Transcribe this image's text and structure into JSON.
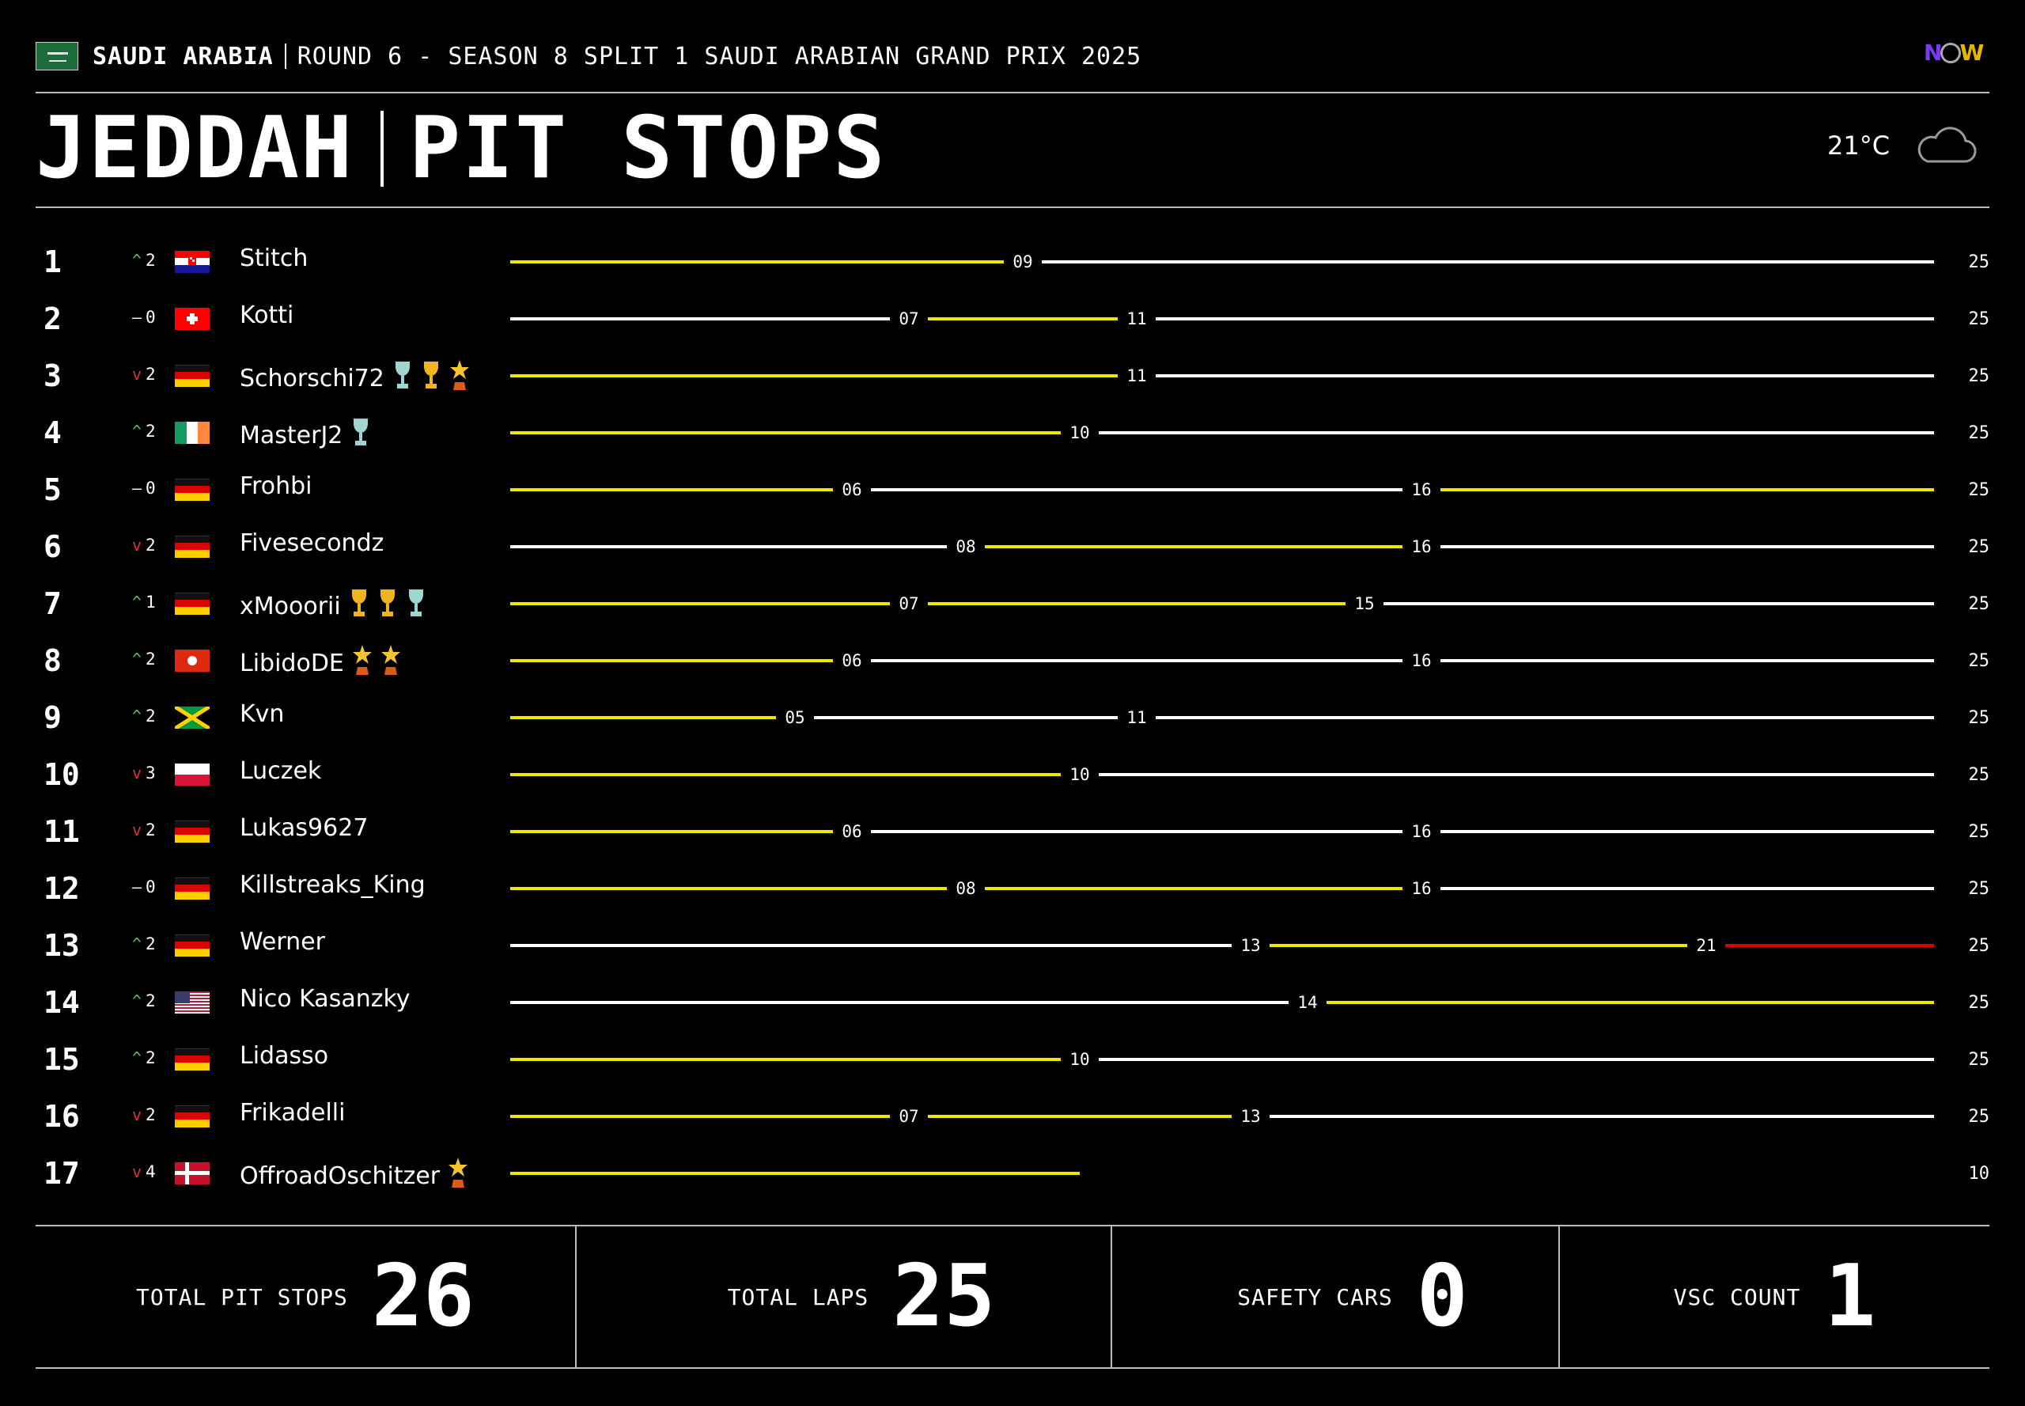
{
  "header": {
    "country": "SAUDI ARABIA",
    "round": "ROUND 6 - SEASON 8 SPLIT 1 SAUDI ARABIAN GRAND PRIX 2025",
    "logo": {
      "n": "N",
      "w": "W"
    },
    "city": "JEDDAH",
    "title": "PIT STOPS",
    "temperature": "21°C",
    "weather_icon": "cloud-icon"
  },
  "colors": {
    "stint_yellow": "#f2e600",
    "stint_white": "#ffffff",
    "stint_red": "#e00000",
    "up": "#3ad34a",
    "down": "#e03030"
  },
  "chart_data": {
    "type": "table",
    "x_axis": {
      "min_lap": 0,
      "max_lap": 25
    },
    "rows": [
      {
        "pos": "1",
        "change_dir": "up",
        "change": "2",
        "flag": "croatia",
        "driver": "Stitch",
        "trophies": [],
        "pit_laps": [
          "09"
        ],
        "stints": [
          {
            "to": 9,
            "color": "yellow"
          },
          {
            "to": 25,
            "color": "white"
          }
        ],
        "finish": "25"
      },
      {
        "pos": "2",
        "change_dir": "same",
        "change": "0",
        "flag": "switzerland",
        "driver": "Kotti",
        "trophies": [],
        "pit_laps": [
          "07",
          "11"
        ],
        "stints": [
          {
            "to": 7,
            "color": "white"
          },
          {
            "to": 11,
            "color": "yellow"
          },
          {
            "to": 25,
            "color": "white"
          }
        ],
        "finish": "25"
      },
      {
        "pos": "3",
        "change_dir": "down",
        "change": "2",
        "flag": "germany",
        "driver": "Schorschi72",
        "trophies": [
          "silver-trophy-icon",
          "gold-trophy-icon",
          "star-trophy-icon"
        ],
        "pit_laps": [
          "11"
        ],
        "stints": [
          {
            "to": 11,
            "color": "yellow"
          },
          {
            "to": 25,
            "color": "white"
          }
        ],
        "finish": "25"
      },
      {
        "pos": "4",
        "change_dir": "up",
        "change": "2",
        "flag": "ireland",
        "driver": "MasterJ2",
        "trophies": [
          "silver-trophy-icon"
        ],
        "pit_laps": [
          "10"
        ],
        "stints": [
          {
            "to": 10,
            "color": "yellow"
          },
          {
            "to": 25,
            "color": "white"
          }
        ],
        "finish": "25"
      },
      {
        "pos": "5",
        "change_dir": "same",
        "change": "0",
        "flag": "germany",
        "driver": "Frohbi",
        "trophies": [],
        "pit_laps": [
          "06",
          "16"
        ],
        "stints": [
          {
            "to": 6,
            "color": "yellow"
          },
          {
            "to": 16,
            "color": "white"
          },
          {
            "to": 25,
            "color": "yellow"
          }
        ],
        "finish": "25"
      },
      {
        "pos": "6",
        "change_dir": "down",
        "change": "2",
        "flag": "germany",
        "driver": "Fivesecondz",
        "trophies": [],
        "pit_laps": [
          "08",
          "16"
        ],
        "stints": [
          {
            "to": 8,
            "color": "white"
          },
          {
            "to": 16,
            "color": "yellow"
          },
          {
            "to": 25,
            "color": "white"
          }
        ],
        "finish": "25"
      },
      {
        "pos": "7",
        "change_dir": "up",
        "change": "1",
        "flag": "germany",
        "driver": "xMooorii",
        "trophies": [
          "gold-trophy-icon",
          "gold-trophy-icon",
          "silver-trophy-icon"
        ],
        "pit_laps": [
          "07",
          "15"
        ],
        "stints": [
          {
            "to": 7,
            "color": "yellow"
          },
          {
            "to": 15,
            "color": "yellow"
          },
          {
            "to": 25,
            "color": "white"
          }
        ],
        "finish": "25"
      },
      {
        "pos": "8",
        "change_dir": "up",
        "change": "2",
        "flag": "hong-kong",
        "driver": "LibidoDE",
        "trophies": [
          "star-trophy-icon",
          "star-trophy-icon"
        ],
        "pit_laps": [
          "06",
          "16"
        ],
        "stints": [
          {
            "to": 6,
            "color": "yellow"
          },
          {
            "to": 16,
            "color": "white"
          },
          {
            "to": 25,
            "color": "white"
          }
        ],
        "finish": "25"
      },
      {
        "pos": "9",
        "change_dir": "up",
        "change": "2",
        "flag": "jamaica",
        "driver": "Kvn",
        "trophies": [],
        "pit_laps": [
          "05",
          "11"
        ],
        "stints": [
          {
            "to": 5,
            "color": "yellow"
          },
          {
            "to": 11,
            "color": "white"
          },
          {
            "to": 25,
            "color": "white"
          }
        ],
        "finish": "25"
      },
      {
        "pos": "10",
        "change_dir": "down",
        "change": "3",
        "flag": "poland",
        "driver": "Luczek",
        "trophies": [],
        "pit_laps": [
          "10"
        ],
        "stints": [
          {
            "to": 10,
            "color": "yellow"
          },
          {
            "to": 25,
            "color": "white"
          }
        ],
        "finish": "25"
      },
      {
        "pos": "11",
        "change_dir": "down",
        "change": "2",
        "flag": "germany",
        "driver": "Lukas9627",
        "trophies": [],
        "pit_laps": [
          "06",
          "16"
        ],
        "stints": [
          {
            "to": 6,
            "color": "yellow"
          },
          {
            "to": 16,
            "color": "white"
          },
          {
            "to": 25,
            "color": "white"
          }
        ],
        "finish": "25"
      },
      {
        "pos": "12",
        "change_dir": "same",
        "change": "0",
        "flag": "germany",
        "driver": "Killstreaks_King",
        "trophies": [],
        "pit_laps": [
          "08",
          "16"
        ],
        "stints": [
          {
            "to": 8,
            "color": "yellow"
          },
          {
            "to": 16,
            "color": "yellow"
          },
          {
            "to": 25,
            "color": "white"
          }
        ],
        "finish": "25"
      },
      {
        "pos": "13",
        "change_dir": "up",
        "change": "2",
        "flag": "germany",
        "driver": "Werner",
        "trophies": [],
        "pit_laps": [
          "13",
          "21"
        ],
        "stints": [
          {
            "to": 13,
            "color": "white"
          },
          {
            "to": 21,
            "color": "yellow"
          },
          {
            "to": 25,
            "color": "red"
          }
        ],
        "finish": "25"
      },
      {
        "pos": "14",
        "change_dir": "up",
        "change": "2",
        "flag": "usa",
        "driver": "Nico Kasanzky",
        "trophies": [],
        "pit_laps": [
          "14"
        ],
        "stints": [
          {
            "to": 14,
            "color": "white"
          },
          {
            "to": 25,
            "color": "yellow"
          }
        ],
        "finish": "25"
      },
      {
        "pos": "15",
        "change_dir": "up",
        "change": "2",
        "flag": "germany",
        "driver": "Lidasso",
        "trophies": [],
        "pit_laps": [
          "10"
        ],
        "stints": [
          {
            "to": 10,
            "color": "yellow"
          },
          {
            "to": 25,
            "color": "white"
          }
        ],
        "finish": "25"
      },
      {
        "pos": "16",
        "change_dir": "down",
        "change": "2",
        "flag": "germany",
        "driver": "Frikadelli",
        "trophies": [],
        "pit_laps": [
          "07",
          "13"
        ],
        "stints": [
          {
            "to": 7,
            "color": "yellow"
          },
          {
            "to": 13,
            "color": "yellow"
          },
          {
            "to": 25,
            "color": "white"
          }
        ],
        "finish": "25"
      },
      {
        "pos": "17",
        "change_dir": "down",
        "change": "4",
        "flag": "denmark",
        "driver": "OffroadOschitzer",
        "trophies": [
          "star-trophy-icon"
        ],
        "pit_laps": [],
        "stints": [
          {
            "to": 10,
            "color": "yellow"
          }
        ],
        "finish": "10"
      }
    ]
  },
  "stats": [
    {
      "label": "TOTAL PIT STOPS",
      "value": "26"
    },
    {
      "label": "TOTAL LAPS",
      "value": "25"
    },
    {
      "label": "SAFETY CARS",
      "value": "0"
    },
    {
      "label": "VSC COUNT",
      "value": "1"
    }
  ]
}
